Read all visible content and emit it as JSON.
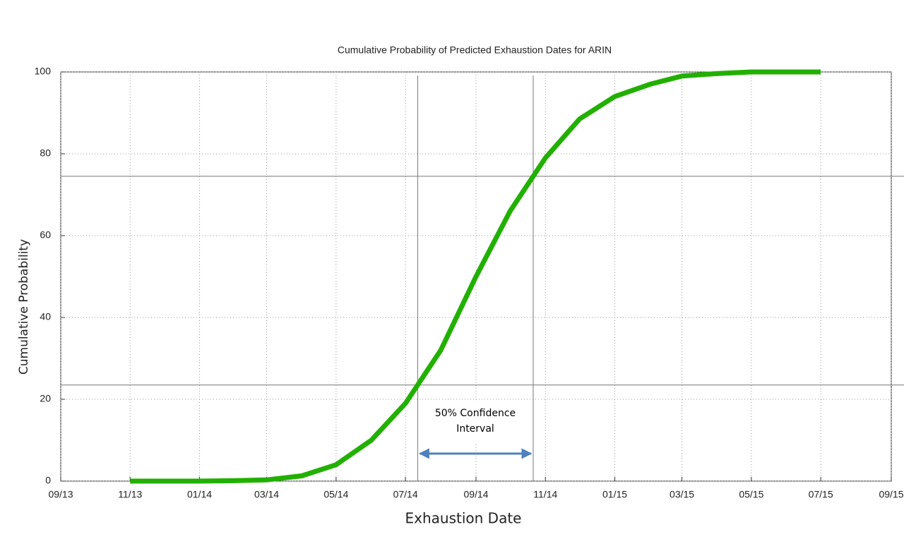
{
  "chart_data": {
    "type": "line",
    "title": "Cumulative Probability of Predicted Exhaustion Dates for ARIN",
    "x_label": "Exhaustion Date",
    "y_label": "Cumulative Probability",
    "x": [
      "2013-11",
      "2013-12",
      "2014-01",
      "2014-02",
      "2014-03",
      "2014-04",
      "2014-05",
      "2014-06",
      "2014-07",
      "2014-08",
      "2014-09",
      "2014-10",
      "2014-11",
      "2014-12",
      "2015-01",
      "2015-02",
      "2015-03",
      "2015-04",
      "2015-05",
      "2015-06",
      "2015-07"
    ],
    "values": [
      0,
      0,
      0,
      0.1,
      0.3,
      1.3,
      4,
      10,
      19,
      32,
      50,
      66,
      79,
      88.5,
      94,
      97,
      99,
      99.6,
      100,
      100,
      100
    ],
    "color": "#22b000",
    "xlim": [
      "2013-09",
      "2015-09"
    ],
    "xticks": [
      {
        "value": "2013-09",
        "label": "09/13"
      },
      {
        "value": "2013-11",
        "label": "11/13"
      },
      {
        "value": "2014-01",
        "label": "01/14"
      },
      {
        "value": "2014-03",
        "label": "03/14"
      },
      {
        "value": "2014-05",
        "label": "05/14"
      },
      {
        "value": "2014-07",
        "label": "07/14"
      },
      {
        "value": "2014-09",
        "label": "09/14"
      },
      {
        "value": "2014-11",
        "label": "11/14"
      },
      {
        "value": "2015-01",
        "label": "01/15"
      },
      {
        "value": "2015-03",
        "label": "03/15"
      },
      {
        "value": "2015-05",
        "label": "05/15"
      },
      {
        "value": "2015-07",
        "label": "07/15"
      },
      {
        "value": "2015-09",
        "label": "09/15"
      }
    ],
    "ylim": [
      0,
      100
    ],
    "yticks": [
      0,
      20,
      40,
      60,
      80,
      100
    ],
    "grid": true,
    "confidence_interval": {
      "lower": 23.5,
      "upper": 74.5,
      "label": "50% Confidence Interval",
      "color": "#4f81bd"
    }
  }
}
